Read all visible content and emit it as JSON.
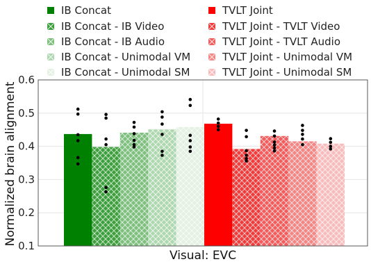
{
  "chart_data": {
    "type": "bar",
    "xlabel": "Visual: EVC",
    "ylabel": "Normalized brain alignment",
    "ylim": [
      0.1,
      0.6
    ],
    "yticks": [
      "0.1",
      "0.2",
      "0.3",
      "0.4",
      "0.5",
      "0.6"
    ],
    "grid": true,
    "legend_position": "top",
    "series": [
      {
        "name": "IB Concat",
        "value": 0.437,
        "color": "#008000",
        "hatch": false,
        "points": [
          0.512,
          0.497,
          0.435,
          0.417,
          0.366,
          0.347
        ]
      },
      {
        "name": "IB Concat - IB Video",
        "value": 0.398,
        "color": "#3f9f3f",
        "hatch": true,
        "points": [
          0.496,
          0.485,
          0.422,
          0.405,
          0.276,
          0.263
        ]
      },
      {
        "name": "IB Concat - IB Audio",
        "value": 0.441,
        "color": "#7fbf7f",
        "hatch": true,
        "points": [
          0.472,
          0.458,
          0.438,
          0.418,
          0.405,
          0.398
        ]
      },
      {
        "name": "IB Concat - Unimodal VM",
        "value": 0.451,
        "color": "#b0d8b0",
        "hatch": true,
        "points": [
          0.504,
          0.488,
          0.467,
          0.436,
          0.385,
          0.373
        ]
      },
      {
        "name": "IB Concat - Unimodal SM",
        "value": 0.458,
        "color": "#e3f1e3",
        "hatch": true,
        "points": [
          0.541,
          0.523,
          0.433,
          0.417,
          0.398,
          0.385
        ]
      },
      {
        "name": "TVLT Joint",
        "value": 0.468,
        "color": "#ff0000",
        "hatch": false,
        "points": [
          0.482,
          0.47,
          0.46,
          0.45
        ]
      },
      {
        "name": "TVLT Joint - TVLT Video",
        "value": 0.392,
        "color": "#f23b3b",
        "hatch": true,
        "points": [
          0.448,
          0.429,
          0.387,
          0.373,
          0.363,
          0.356
        ]
      },
      {
        "name": "TVLT Joint - TVLT Audio",
        "value": 0.431,
        "color": "#f25c5c",
        "hatch": true,
        "points": [
          0.446,
          0.431,
          0.413,
          0.404,
          0.395,
          0.386
        ]
      },
      {
        "name": "TVLT Joint - Unimodal VM",
        "value": 0.415,
        "color": "#f58686",
        "hatch": true,
        "points": [
          0.463,
          0.448,
          0.436,
          0.422,
          0.405
        ]
      },
      {
        "name": "TVLT Joint - Unimodal SM",
        "value": 0.408,
        "color": "#f9bcbc",
        "hatch": true,
        "points": [
          0.423,
          0.412,
          0.4,
          0.392
        ]
      }
    ]
  }
}
